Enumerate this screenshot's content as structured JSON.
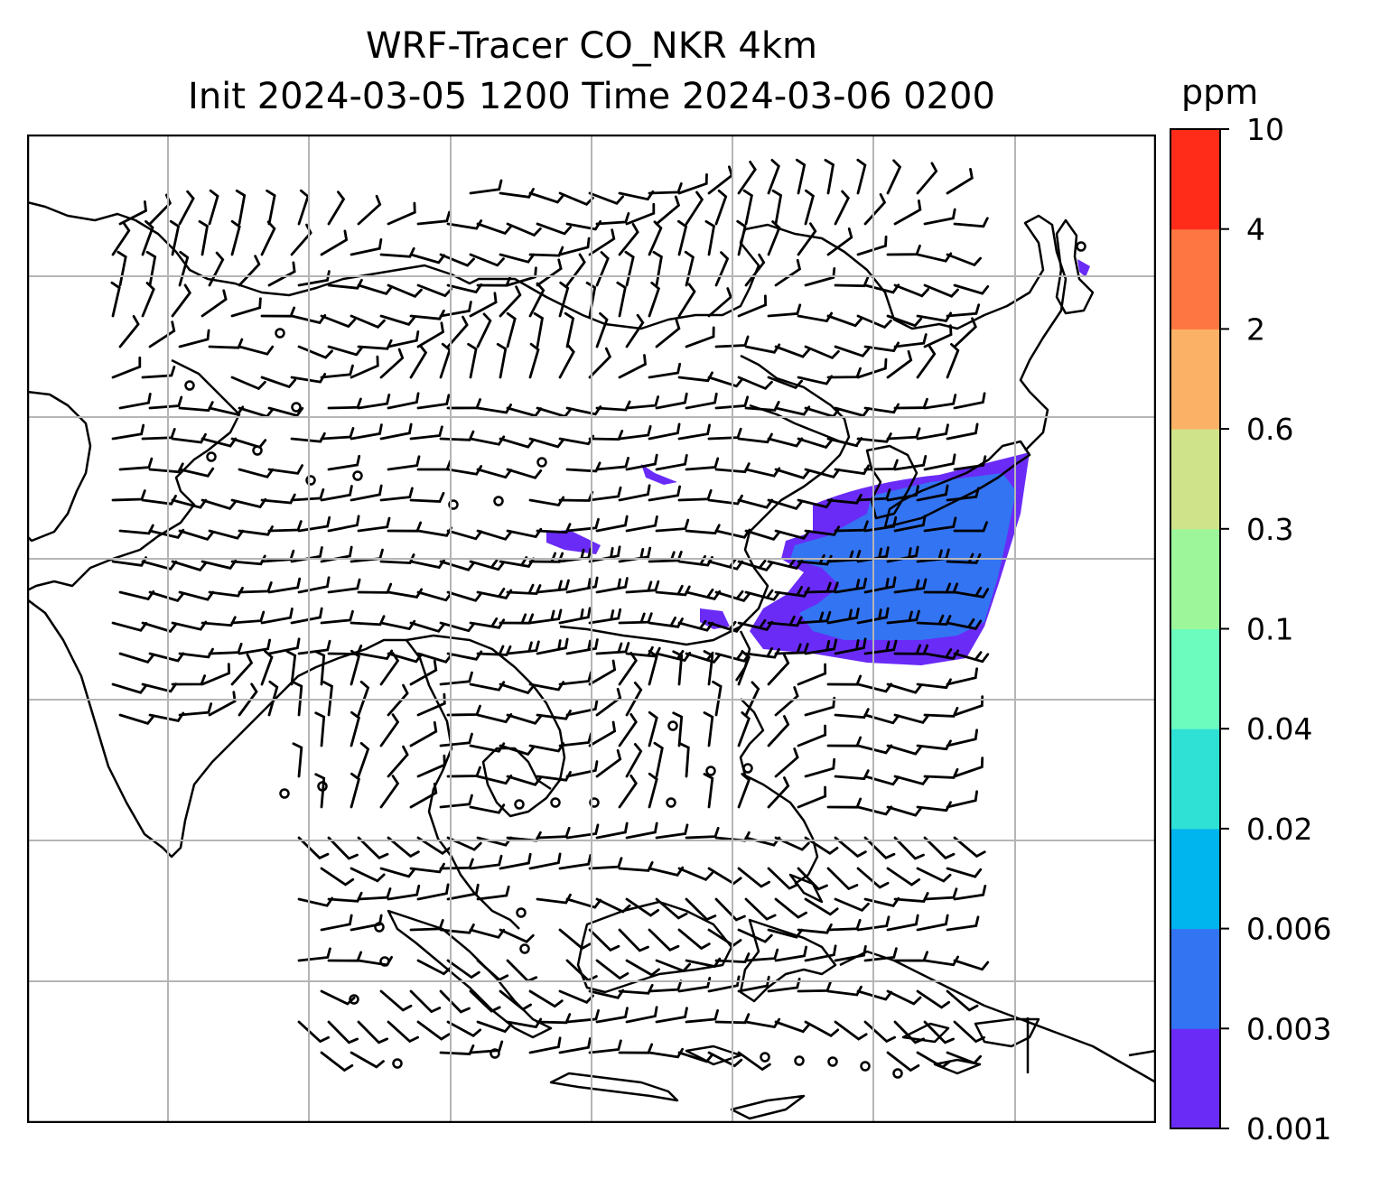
{
  "title": {
    "line1": "WRF-Tracer CO_NKR 4km",
    "line2": "Init 2024-03-05 1200 Time 2024-03-06 0200"
  },
  "colorbar": {
    "unit": "ppm",
    "levels": [
      "0.001",
      "0.003",
      "0.006",
      "0.02",
      "0.04",
      "0.1",
      "0.3",
      "0.6",
      "2",
      "4",
      "10"
    ],
    "colors": [
      "#6a2bf7",
      "#3374f2",
      "#00b4ee",
      "#2fe0d4",
      "#6bfcbe",
      "#9df79a",
      "#cfe38a",
      "#fcb266",
      "#fe7642",
      "#ff2c1a"
    ]
  },
  "map": {
    "tracer_plume_level_colors": [
      "#6a2bf7",
      "#3374f2"
    ],
    "wind_barbs_present": true,
    "grid": true
  }
}
